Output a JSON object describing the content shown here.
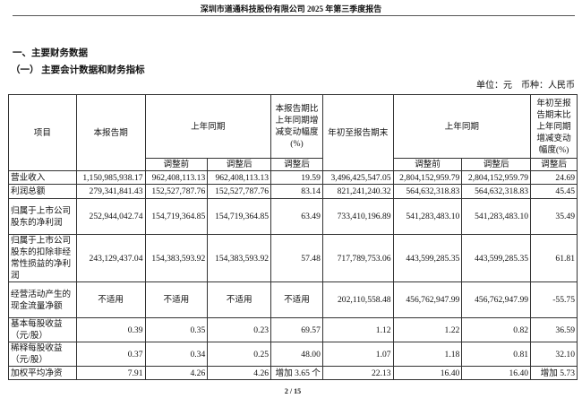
{
  "header": {
    "title": "深圳市道通科技股份有限公司 2025 年第三季度报告"
  },
  "section": {
    "title": "一、主要财务数据",
    "subtitle": "（一） 主要会计数据和财务指标",
    "unit": "单位：元　币种：人民币"
  },
  "table": {
    "headers": {
      "item": "项目",
      "current": "本报告期",
      "prior": "上年同期",
      "change": "本报告期比上年同期增减变动幅度(%)",
      "ytd": "年初至报告期末",
      "ytd_prior": "上年同期",
      "ytd_change": "年初至报告期末比上年同期增减变动幅度(%)",
      "before": "调整前",
      "after": "调整后"
    },
    "rows": [
      {
        "item": "营业收入",
        "v": [
          "1,150,985,938.17",
          "962,408,113.13",
          "962,408,113.13",
          "19.59",
          "3,496,425,547.05",
          "2,804,152,959.79",
          "2,804,152,959.79",
          "24.69"
        ]
      },
      {
        "item": "利润总额",
        "v": [
          "279,341,841.43",
          "152,527,787.76",
          "152,527,787.76",
          "83.14",
          "821,241,240.32",
          "564,632,318.83",
          "564,632,318.83",
          "45.45"
        ]
      },
      {
        "item": "归属于上市公司股东的净利润",
        "v": [
          "252,944,042.74",
          "154,719,364.85",
          "154,719,364.85",
          "63.49",
          "733,410,196.89",
          "541,283,483.10",
          "541,283,483.10",
          "35.49"
        ]
      },
      {
        "item": "归属于上市公司股东的扣除非经常性损益的净利润",
        "v": [
          "243,129,437.04",
          "154,383,593.92",
          "154,383,593.92",
          "57.48",
          "717,789,753.06",
          "443,599,285.35",
          "443,599,285.35",
          "61.81"
        ]
      },
      {
        "item": "经营活动产生的现金流量净额",
        "v": [
          "不适用",
          "不适用",
          "不适用",
          "不适用",
          "202,110,558.48",
          "456,762,947.99",
          "456,762,947.99",
          "-55.75"
        ]
      },
      {
        "item": "基本每股收益（元/股）",
        "v": [
          "0.39",
          "0.35",
          "0.23",
          "69.57",
          "1.12",
          "1.22",
          "0.82",
          "36.59"
        ]
      },
      {
        "item": "稀释每股收益（元/股）",
        "v": [
          "0.37",
          "0.34",
          "0.25",
          "48.00",
          "1.07",
          "1.18",
          "0.81",
          "32.10"
        ]
      },
      {
        "item": "加权平均净资",
        "v": [
          "7.91",
          "4.26",
          "4.26",
          "增加 3.65 个",
          "22.13",
          "16.40",
          "16.40",
          "增加 5.73"
        ]
      }
    ]
  },
  "footer": {
    "page": "2 / 15"
  }
}
